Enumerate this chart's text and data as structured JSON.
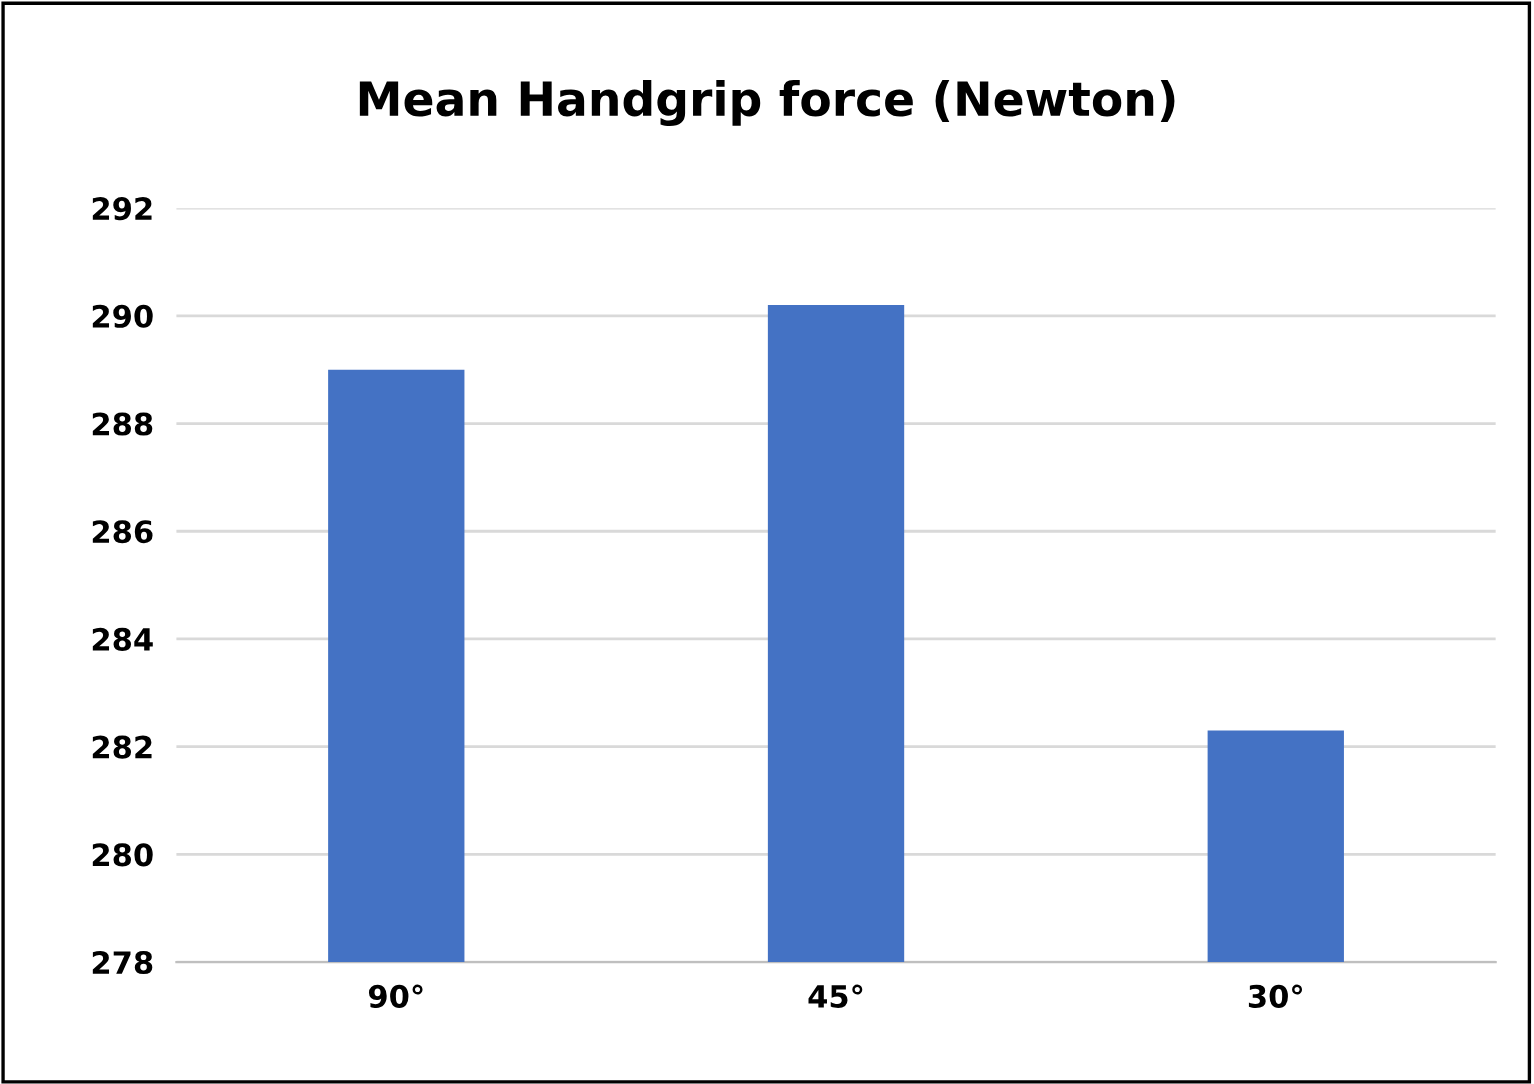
{
  "chart_data": {
    "type": "bar",
    "title": "Mean Handgrip force (Newton)",
    "categories": [
      "90°",
      "45°",
      "30°"
    ],
    "values": [
      289.0,
      290.2,
      282.3
    ],
    "color": "#4472c4",
    "ylim": [
      278,
      292
    ],
    "yticks": [
      278,
      280,
      282,
      284,
      286,
      288,
      290,
      292
    ],
    "grid": "y",
    "legend": false
  }
}
